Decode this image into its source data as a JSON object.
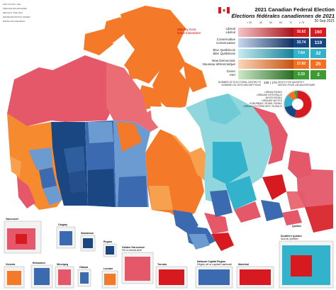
{
  "title": {
    "en": "2021 Canadian Federal Election",
    "fr": "Élections fédérales canadiennes de 2021",
    "date": "20 Sep 2021"
  },
  "minority": {
    "en": "Minority Govt",
    "fr": "Gouv minoritaire"
  },
  "scale": {
    "label_en": "ELECTED VOTE SHARE (%)",
    "label_fr": "FORCE DU VOTE GAGNANTE (%)",
    "ticks": [
      "< 30",
      "40",
      "50",
      "60",
      "70",
      "≥ 75"
    ]
  },
  "parties": [
    {
      "en": "Liberal",
      "fr": "Libéral",
      "pct": "32.62",
      "seats": "160",
      "color": "#d71920"
    },
    {
      "en": "Conservative",
      "fr": "Conservateur",
      "pct": "33.74",
      "seats": "119",
      "color": "#1a4782"
    },
    {
      "en": "Bloc Québécois",
      "fr": "Bloc Québécois",
      "pct": "7.64",
      "seats": "32",
      "color": "#33b2cc"
    },
    {
      "en": "New Democratic",
      "fr": "Nouveau démocratique",
      "pct": "17.82",
      "seats": "25",
      "color": "#f37021"
    },
    {
      "en": "Green",
      "fr": "Vert",
      "pct": "2.33",
      "seats": "2",
      "color": "#3d9b35"
    }
  ],
  "footer": {
    "electoral_en": "NUMBER OF ELECTORAL DISTRICTS",
    "electoral_fr": "NOMBRE DE CIRCONSCRIPTIONS",
    "electoral_num": "338",
    "majority_num": "170",
    "majority_en": "SEATS FOR MAJORITY",
    "majority_fr": "SIÈGES POUR UN MAJORITAIRE"
  },
  "type_legend": [
    "URBAN RIDING",
    "URBAINS INTÉGRAUX",
    "MIXED RIDING",
    "URBAINS MIXTES",
    "SUBURBAN / RURAL RIDING",
    "URBAINS EXTÉRIEURS / RURAUX"
  ],
  "side_note": [
    "MAP NOTES: THE",
    "PRECISE BOUNDARIES",
    "REFLECT THE 2013",
    "REPRESENTATION ORDER",
    "RIDING BOUNDARIES"
  ],
  "insets": [
    {
      "en": "Vancouver",
      "fr": ""
    },
    {
      "en": "Calgary",
      "fr": ""
    },
    {
      "en": "Saskatoon",
      "fr": ""
    },
    {
      "en": "Regina",
      "fr": ""
    },
    {
      "en": "Victoria",
      "fr": ""
    },
    {
      "en": "Edmonton",
      "fr": ""
    },
    {
      "en": "Winnipeg",
      "fr": ""
    },
    {
      "en": "Ottawa",
      "fr": ""
    },
    {
      "en": "Golden Horseshoe",
      "fr": "Fer à cheval doré"
    },
    {
      "en": "London",
      "fr": ""
    },
    {
      "en": "Toronto",
      "fr": ""
    },
    {
      "en": "National Capital Region",
      "fr": "Région de la capitale nationale"
    },
    {
      "en": "Montréal",
      "fr": ""
    },
    {
      "en": "Québec",
      "fr": ""
    },
    {
      "en": "Southern Québec",
      "fr": "Sud du Québec"
    }
  ],
  "colors": {
    "liberal": "#d71920",
    "liberal_light": "#ea6d76",
    "conservative": "#1a4782",
    "conservative_mid": "#3b6ab0",
    "conservative_light": "#6c9bd2",
    "bloc": "#33b2cc",
    "bloc_light": "#8fd6dd",
    "ndp": "#f37021",
    "ndp_light": "#f7a04e",
    "green": "#3d9b35",
    "water": "#ffffff"
  }
}
